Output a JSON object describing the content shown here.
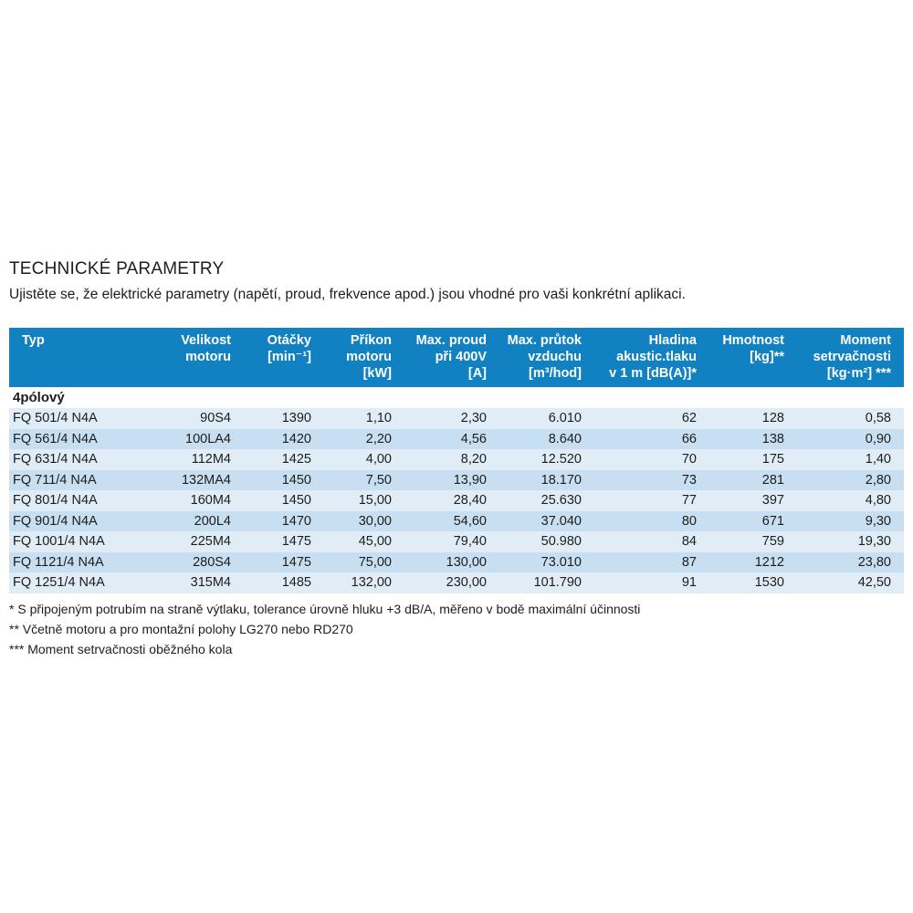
{
  "page": {
    "title": "TECHNICKÉ PARAMETRY",
    "subtitle": "Ujistěte se, že elektrické parametry (napětí, proud, frekvence apod.) jsou vhodné pro vaši konkrétní aplikaci."
  },
  "colors": {
    "header_bg": "#1181c2",
    "header_text": "#ffffff",
    "row_light": "#e0edf7",
    "row_dark": "#c7dff1",
    "body_text": "#1d1d1b"
  },
  "table": {
    "headers": [
      "Typ",
      "Velikost\nmotoru",
      "Otáčky\n[min⁻¹]",
      "Příkon\nmotoru\n[kW]",
      "Max. proud\npři 400V\n[A]",
      "Max. průtok\nvzduchu\n[m³/hod]",
      "Hladina\nakustic.tlaku\nv 1 m [dB(A)]*",
      "Hmotnost\n[kg]**",
      "Moment\nsetrvačnosti\n[kg·m²] ***"
    ],
    "section_label": "4pólový",
    "rows": [
      [
        "FQ 501/4 N4A",
        "90S4",
        "1390",
        "1,10",
        "2,30",
        "6.010",
        "62",
        "128",
        "0,58"
      ],
      [
        "FQ 561/4 N4A",
        "100LA4",
        "1420",
        "2,20",
        "4,56",
        "8.640",
        "66",
        "138",
        "0,90"
      ],
      [
        "FQ 631/4 N4A",
        "112M4",
        "1425",
        "4,00",
        "8,20",
        "12.520",
        "70",
        "175",
        "1,40"
      ],
      [
        "FQ 711/4 N4A",
        "132MA4",
        "1450",
        "7,50",
        "13,90",
        "18.170",
        "73",
        "281",
        "2,80"
      ],
      [
        "FQ 801/4 N4A",
        "160M4",
        "1450",
        "15,00",
        "28,40",
        "25.630",
        "77",
        "397",
        "4,80"
      ],
      [
        "FQ 901/4 N4A",
        "200L4",
        "1470",
        "30,00",
        "54,60",
        "37.040",
        "80",
        "671",
        "9,30"
      ],
      [
        "FQ 1001/4 N4A",
        "225M4",
        "1475",
        "45,00",
        "79,40",
        "50.980",
        "84",
        "759",
        "19,30"
      ],
      [
        "FQ 1121/4 N4A",
        "280S4",
        "1475",
        "75,00",
        "130,00",
        "73.010",
        "87",
        "1212",
        "23,80"
      ],
      [
        "FQ 1251/4 N4A",
        "315M4",
        "1485",
        "132,00",
        "230,00",
        "101.790",
        "91",
        "1530",
        "42,50"
      ]
    ]
  },
  "footnotes": [
    "* S připojeným potrubím na straně výtlaku, tolerance úrovně hluku +3 dB/A, měřeno v bodě maximální účinnosti",
    "** Včetně motoru a pro montažní polohy LG270 nebo RD270",
    "*** Moment setrvačnosti oběžného kola"
  ]
}
